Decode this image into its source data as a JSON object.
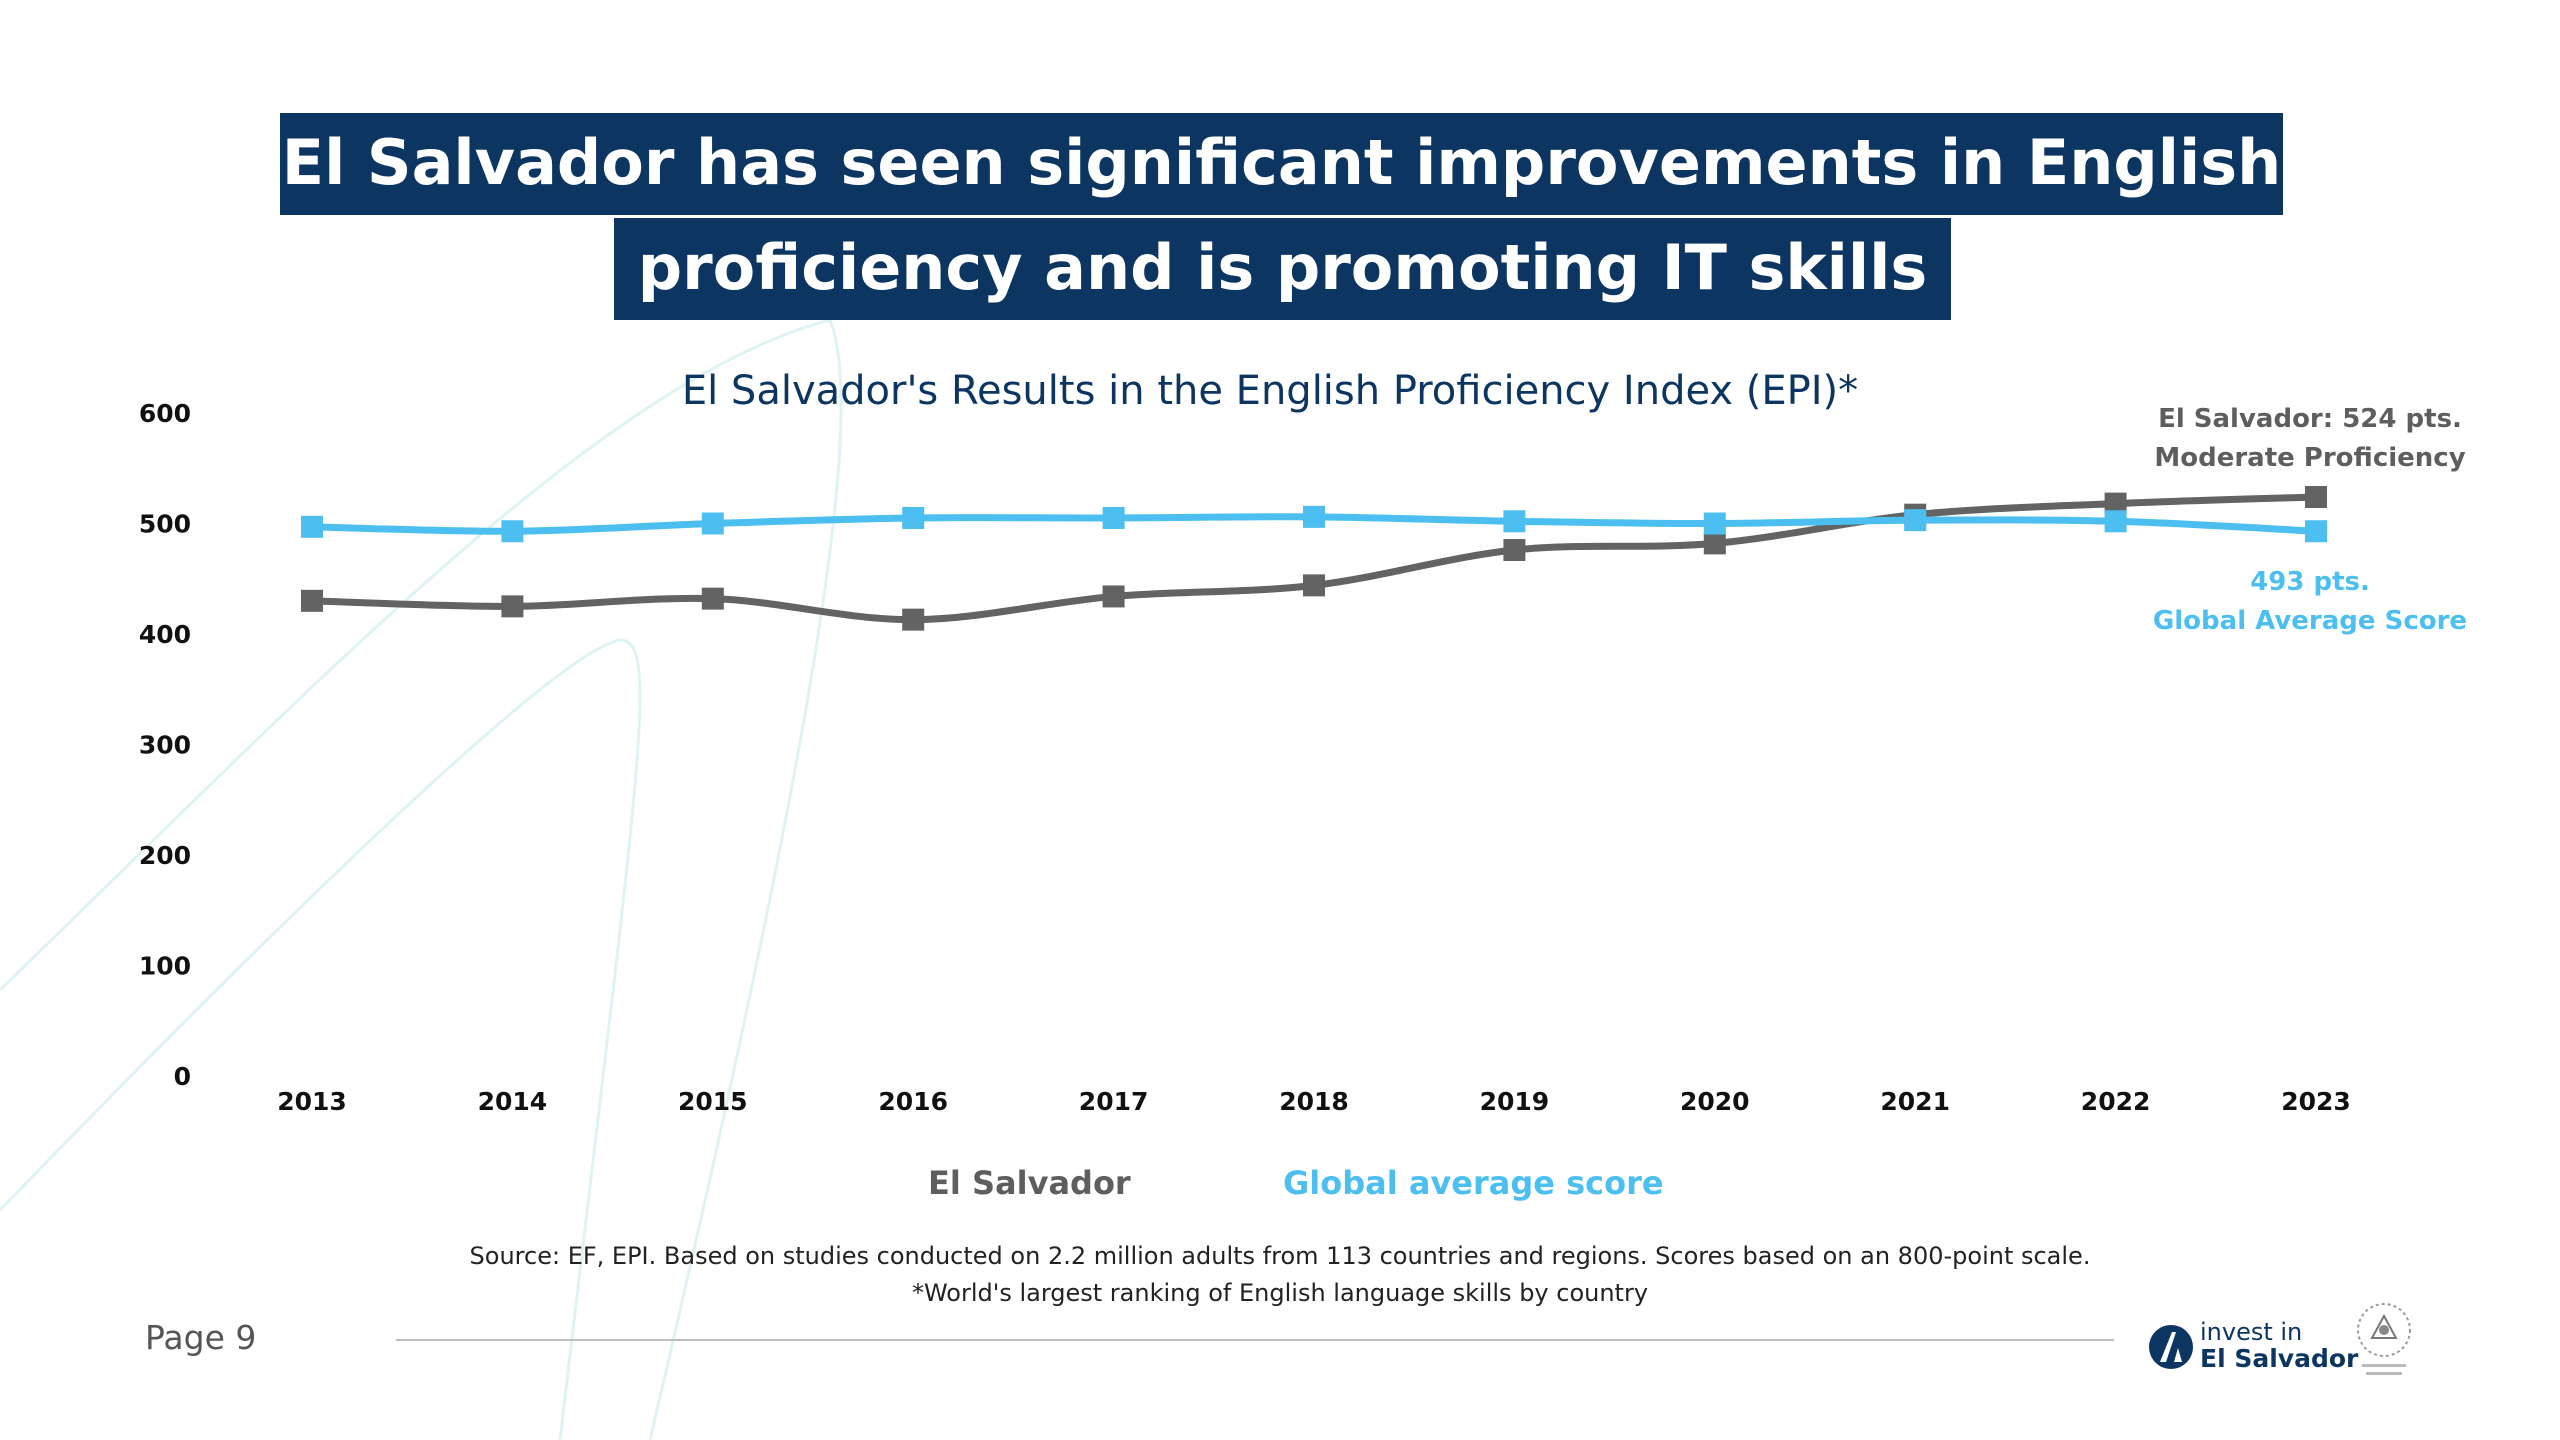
{
  "title": {
    "line1": "El Salvador has seen significant improvements in English",
    "line2": "proficiency and is promoting IT skills"
  },
  "chart_data": {
    "type": "line",
    "title": "El Salvador's Results in the English Proficiency Index (EPI)*",
    "xlabel": "",
    "ylabel": "",
    "ylim": [
      0,
      600
    ],
    "yticks": [
      "0",
      "100",
      "200",
      "300",
      "400",
      "500",
      "600"
    ],
    "categories": [
      "2013",
      "2014",
      "2015",
      "2016",
      "2017",
      "2018",
      "2019",
      "2020",
      "2021",
      "2022",
      "2023"
    ],
    "series": [
      {
        "name": "El Salvador",
        "color": "#636363",
        "values": [
          430,
          425,
          432,
          413,
          434,
          444,
          476,
          482,
          508,
          518,
          524
        ]
      },
      {
        "name": "Global average score",
        "color": "#4cbff0",
        "values": [
          497,
          493,
          500,
          505,
          505,
          506,
          502,
          500,
          503,
          502,
          493
        ]
      }
    ],
    "annotations": {
      "el_salvador_line1": "El Salvador: 524 pts.",
      "el_salvador_line2": "Moderate Proficiency",
      "global_line1": "493 pts.",
      "global_line2": "Global Average Score"
    },
    "legend": {
      "el_salvador": "El Salvador",
      "global": "Global average score"
    }
  },
  "source": {
    "line1": "Source: EF, EPI. Based on studies conducted on 2.2 million adults from 113 countries and regions. Scores based on an 800-point scale.",
    "line2": "*World's largest ranking of English language skills by country"
  },
  "footer": {
    "page": "Page 9",
    "brand_line1": "invest in",
    "brand_line2": "El Salvador"
  },
  "colors": {
    "navy": "#0d3562",
    "el_salvador": "#636363",
    "global": "#4cbff0"
  },
  "icons": {
    "brand": "invest-in-el-salvador-logo-icon",
    "seal": "government-seal-icon"
  }
}
